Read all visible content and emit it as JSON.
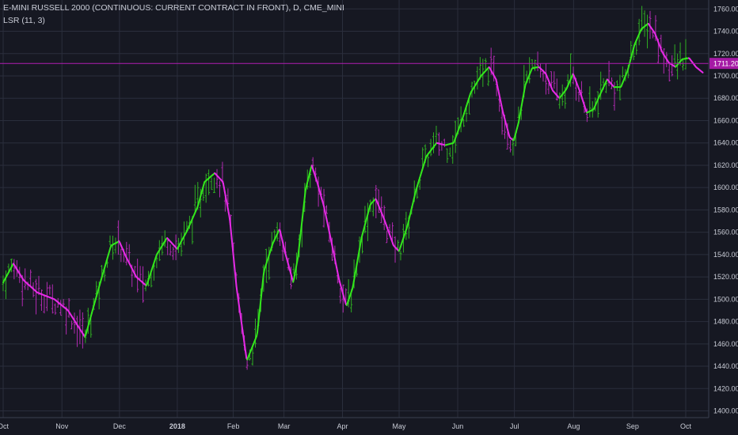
{
  "chart_data": {
    "type": "line",
    "title": "E-MINI RUSSELL 2000 (CONTINUOUS: CURRENT CONTRACT IN FRONT), D, CME_MINI",
    "indicator": "LSR (11, 3)",
    "price_label": "1711.20",
    "price_level": 1711.2,
    "ylim": [
      1394,
      1768
    ],
    "y_ticks": [
      1400,
      1420,
      1440,
      1460,
      1480,
      1500,
      1520,
      1540,
      1560,
      1580,
      1600,
      1620,
      1640,
      1660,
      1680,
      1700,
      1720,
      1740,
      1760
    ],
    "y_tick_labels": [
      "1400.00",
      "1420.00",
      "1440.00",
      "1460.00",
      "1480.00",
      "1500.00",
      "1520.00",
      "1540.00",
      "1560.00",
      "1580.00",
      "1600.00",
      "1620.00",
      "1640.00",
      "1660.00",
      "1680.00",
      "1700.00",
      "1720.00",
      "1740.00",
      "1760.00"
    ],
    "x_ticks": [
      {
        "label": "Oct",
        "t": 0,
        "bold": false
      },
      {
        "label": "Nov",
        "t": 0.0861,
        "bold": false
      },
      {
        "label": "Dec",
        "t": 0.1704,
        "bold": false
      },
      {
        "label": "2018",
        "t": 0.2551,
        "bold": true
      },
      {
        "label": "Feb",
        "t": 0.3371,
        "bold": false
      },
      {
        "label": "Mar",
        "t": 0.4114,
        "bold": false
      },
      {
        "label": "Apr",
        "t": 0.4971,
        "bold": false
      },
      {
        "label": "May",
        "t": 0.5801,
        "bold": false
      },
      {
        "label": "Jun",
        "t": 0.6659,
        "bold": false
      },
      {
        "label": "Jul",
        "t": 0.749,
        "bold": false
      },
      {
        "label": "Aug",
        "t": 0.8357,
        "bold": false
      },
      {
        "label": "Sep",
        "t": 0.9222,
        "bold": false
      },
      {
        "label": "Oct",
        "t": 1.0,
        "bold": false
      }
    ],
    "series": [
      {
        "color_up": "#33e61c",
        "color_down": "#e62ae6",
        "points": [
          [
            0,
            1515
          ],
          [
            0.015,
            1532
          ],
          [
            0.03,
            1517
          ],
          [
            0.05,
            1506
          ],
          [
            0.075,
            1500
          ],
          [
            0.095,
            1490
          ],
          [
            0.12,
            1466
          ],
          [
            0.14,
            1510
          ],
          [
            0.158,
            1548
          ],
          [
            0.17,
            1552
          ],
          [
            0.18,
            1538
          ],
          [
            0.195,
            1520
          ],
          [
            0.21,
            1512
          ],
          [
            0.225,
            1540
          ],
          [
            0.24,
            1555
          ],
          [
            0.255,
            1545
          ],
          [
            0.27,
            1562
          ],
          [
            0.285,
            1583
          ],
          [
            0.295,
            1605
          ],
          [
            0.31,
            1613
          ],
          [
            0.322,
            1605
          ],
          [
            0.332,
            1572
          ],
          [
            0.342,
            1510
          ],
          [
            0.357,
            1445
          ],
          [
            0.372,
            1468
          ],
          [
            0.382,
            1525
          ],
          [
            0.395,
            1550
          ],
          [
            0.405,
            1563
          ],
          [
            0.413,
            1542
          ],
          [
            0.425,
            1515
          ],
          [
            0.432,
            1538
          ],
          [
            0.443,
            1598
          ],
          [
            0.452,
            1620
          ],
          [
            0.46,
            1605
          ],
          [
            0.47,
            1583
          ],
          [
            0.482,
            1548
          ],
          [
            0.492,
            1518
          ],
          [
            0.5,
            1500
          ],
          [
            0.503,
            1494
          ],
          [
            0.512,
            1510
          ],
          [
            0.525,
            1555
          ],
          [
            0.538,
            1585
          ],
          [
            0.546,
            1590
          ],
          [
            0.558,
            1572
          ],
          [
            0.572,
            1548
          ],
          [
            0.58,
            1543
          ],
          [
            0.592,
            1565
          ],
          [
            0.605,
            1598
          ],
          [
            0.62,
            1628
          ],
          [
            0.635,
            1640
          ],
          [
            0.648,
            1638
          ],
          [
            0.66,
            1640
          ],
          [
            0.672,
            1660
          ],
          [
            0.685,
            1685
          ],
          [
            0.7,
            1700
          ],
          [
            0.712,
            1708
          ],
          [
            0.722,
            1697
          ],
          [
            0.732,
            1668
          ],
          [
            0.742,
            1645
          ],
          [
            0.748,
            1642
          ],
          [
            0.755,
            1658
          ],
          [
            0.765,
            1692
          ],
          [
            0.775,
            1707
          ],
          [
            0.785,
            1708
          ],
          [
            0.795,
            1702
          ],
          [
            0.805,
            1687
          ],
          [
            0.815,
            1680
          ],
          [
            0.825,
            1688
          ],
          [
            0.835,
            1702
          ],
          [
            0.845,
            1686
          ],
          [
            0.855,
            1667
          ],
          [
            0.865,
            1670
          ],
          [
            0.875,
            1684
          ],
          [
            0.885,
            1697
          ],
          [
            0.895,
            1690
          ],
          [
            0.905,
            1690
          ],
          [
            0.915,
            1705
          ],
          [
            0.925,
            1728
          ],
          [
            0.935,
            1742
          ],
          [
            0.945,
            1747
          ],
          [
            0.955,
            1738
          ],
          [
            0.965,
            1722
          ],
          [
            0.975,
            1712
          ],
          [
            0.985,
            1708
          ],
          [
            0.995,
            1715
          ],
          [
            1.005,
            1716
          ],
          [
            1.015,
            1708
          ],
          [
            1.025,
            1703
          ]
        ]
      }
    ],
    "grid": true,
    "legend": "none"
  }
}
